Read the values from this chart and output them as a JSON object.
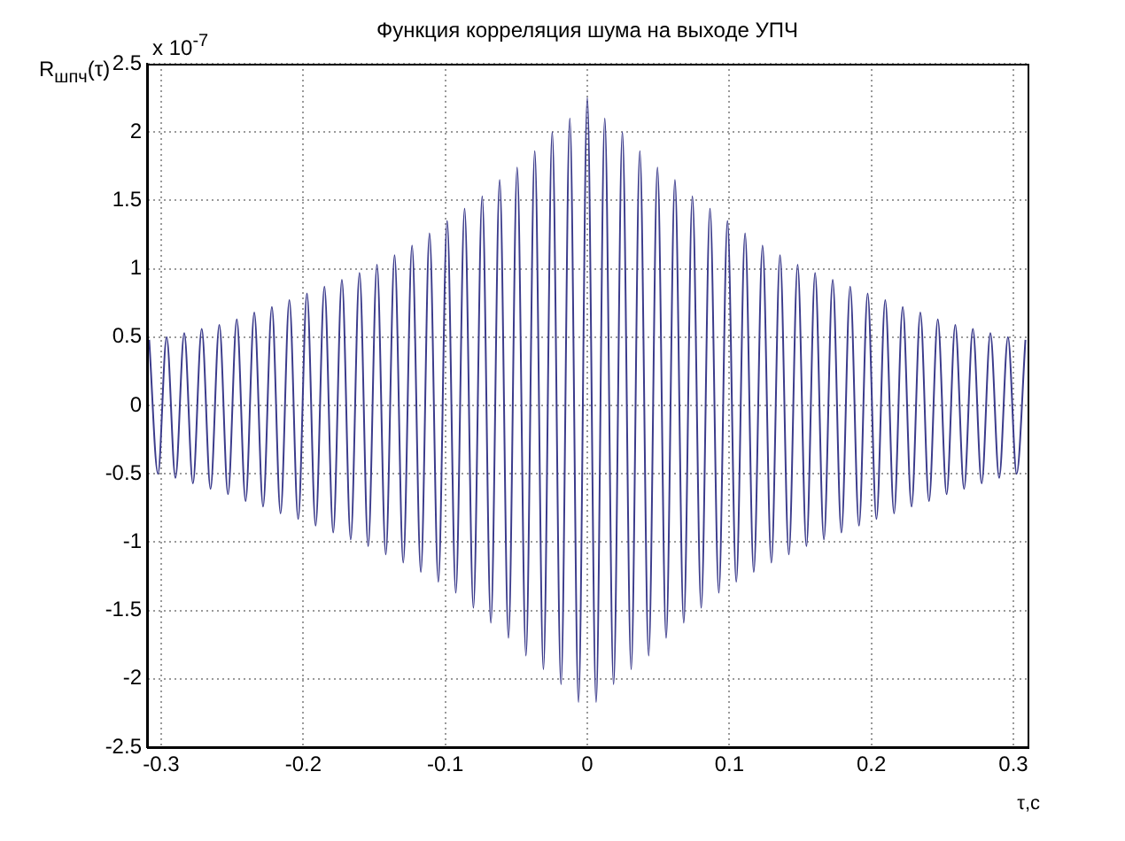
{
  "chart_data": {
    "type": "line",
    "title": "Функция корреляция шума на выходе УПЧ",
    "ylabel": "R$_{шпч}$(τ)",
    "xlabel": "τ,c",
    "annotations": [
      "x 10$^{-7}$"
    ],
    "series": [
      {
        "color": "#3c3c8c",
        "x": [
          -0.3085,
          -0.3023,
          -0.2962,
          -0.29,
          -0.2838,
          -0.2777,
          -0.2715,
          -0.2653,
          -0.2591,
          -0.253,
          -0.2468,
          -0.2406,
          -0.2345,
          -0.2283,
          -0.2221,
          -0.216,
          -0.2098,
          -0.2036,
          -0.1974,
          -0.1913,
          -0.1851,
          -0.1789,
          -0.1728,
          -0.1666,
          -0.1604,
          -0.1543,
          -0.1481,
          -0.1419,
          -0.1357,
          -0.1296,
          -0.1234,
          -0.1172,
          -0.1111,
          -0.1049,
          -0.0987,
          -0.0926,
          -0.0864,
          -0.0802,
          -0.074,
          -0.0679,
          -0.0617,
          -0.0555,
          -0.0494,
          -0.0432,
          -0.037,
          -0.0309,
          -0.0247,
          -0.0185,
          -0.0123,
          -0.0062,
          0,
          0.0062,
          0.0123,
          0.0185,
          0.0247,
          0.0309,
          0.037,
          0.0432,
          0.0494,
          0.0555,
          0.0617,
          0.0679,
          0.074,
          0.0802,
          0.0864,
          0.0926,
          0.0987,
          0.1049,
          0.1111,
          0.1172,
          0.1234,
          0.1296,
          0.1357,
          0.1419,
          0.1481,
          0.1543,
          0.1604,
          0.1666,
          0.1728,
          0.1789,
          0.1851,
          0.1913,
          0.1974,
          0.2036,
          0.2098,
          0.216,
          0.2221,
          0.2283,
          0.2345,
          0.2406,
          0.2468,
          0.253,
          0.2591,
          0.2653,
          0.2715,
          0.2777,
          0.2838,
          0.29,
          0.2962,
          0.3023,
          0.3085
        ],
        "values": [
          0.48,
          -0.5,
          0.5,
          -0.53,
          0.53,
          -0.57,
          0.56,
          -0.61,
          0.59,
          -0.65,
          0.63,
          -0.7,
          0.68,
          -0.74,
          0.72,
          -0.79,
          0.77,
          -0.83,
          0.82,
          -0.88,
          0.87,
          -0.93,
          0.92,
          -0.98,
          0.97,
          -1.03,
          1.03,
          -1.09,
          1.1,
          -1.15,
          1.17,
          -1.22,
          1.26,
          -1.29,
          1.35,
          -1.37,
          1.44,
          -1.48,
          1.53,
          -1.59,
          1.65,
          -1.7,
          1.74,
          -1.83,
          1.86,
          -1.93,
          2.0,
          -2.04,
          2.1,
          -2.17,
          2.25,
          -2.17,
          2.1,
          -2.04,
          2.0,
          -1.93,
          1.86,
          -1.83,
          1.74,
          -1.7,
          1.65,
          -1.59,
          1.53,
          -1.48,
          1.44,
          -1.37,
          1.35,
          -1.29,
          1.26,
          -1.22,
          1.17,
          -1.15,
          1.1,
          -1.09,
          1.03,
          -1.03,
          0.97,
          -0.98,
          0.92,
          -0.93,
          0.87,
          -0.88,
          0.82,
          -0.83,
          0.77,
          -0.79,
          0.72,
          -0.74,
          0.68,
          -0.7,
          0.63,
          -0.65,
          0.59,
          -0.61,
          0.56,
          -0.57,
          0.53,
          -0.53,
          0.5,
          -0.5,
          0.48
        ]
      }
    ],
    "xlim": [
      -0.31,
      0.31
    ],
    "xticks": [
      -0.3,
      -0.2,
      -0.1,
      0,
      0.1,
      0.2,
      0.3
    ],
    "ylim": [
      -2.5,
      2.5
    ],
    "yticks": [
      -2.5,
      -2,
      -1.5,
      -1,
      -0.5,
      0,
      0.5,
      1,
      1.5,
      2,
      2.5
    ],
    "grid": true,
    "legend": false,
    "marker": "none",
    "line_style": "solid"
  }
}
